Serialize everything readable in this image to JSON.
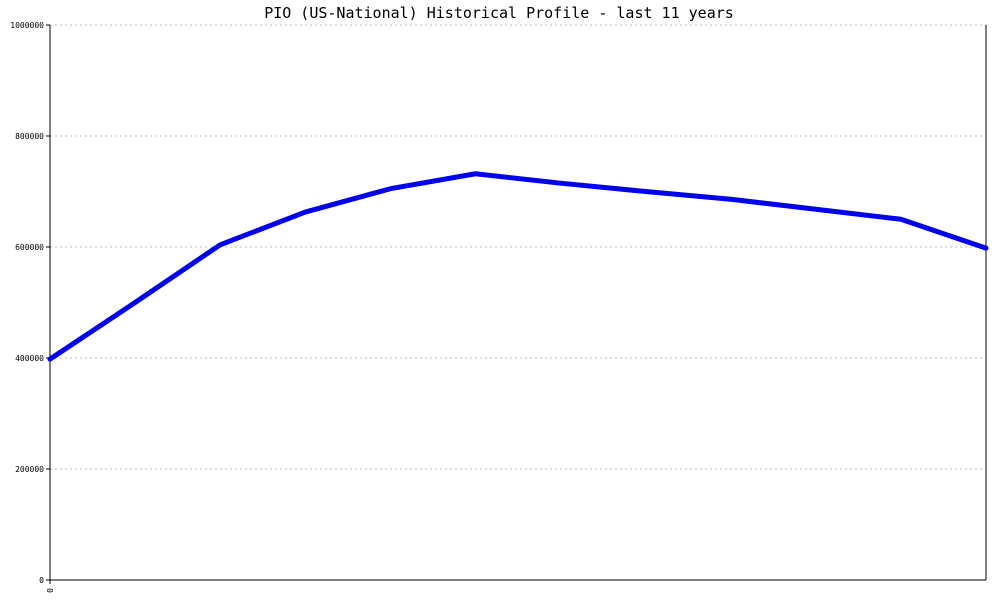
{
  "chart_data": {
    "type": "line",
    "title": "PIO (US-National) Historical Profile - last 11 years",
    "xlabel": "",
    "ylabel": "",
    "x_tick_labels": [
      "0"
    ],
    "y_tick_labels": [
      "0",
      "200000",
      "400000",
      "600000",
      "800000",
      "1000000"
    ],
    "ylim": [
      0,
      1000000
    ],
    "grid": "horizontal dotted",
    "series": [
      {
        "color": "#0000ee",
        "x": [
          0,
          1,
          2,
          3,
          4,
          5,
          6,
          7,
          8,
          9,
          10,
          11
        ],
        "values": [
          398000,
          500000,
          604000,
          663000,
          705000,
          732000,
          715000,
          700000,
          686000,
          668000,
          650000,
          598000
        ]
      }
    ]
  }
}
